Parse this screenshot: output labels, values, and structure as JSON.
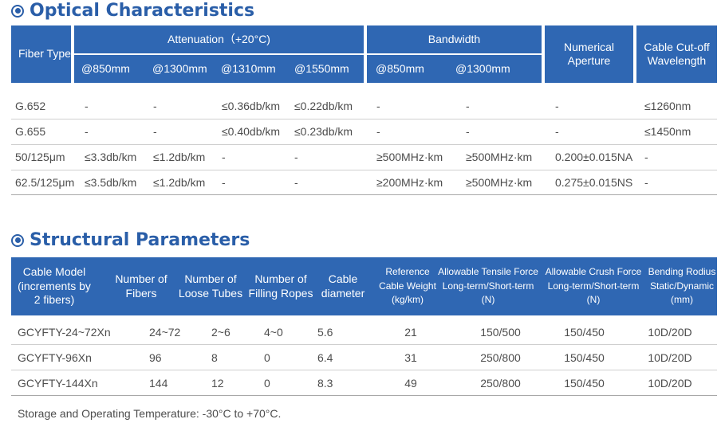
{
  "optical": {
    "title": "Optical Characteristics",
    "headers": {
      "fiber_type": "Fiber Type",
      "attenuation": "Attenuation（+20°C)",
      "bandwidth": "Bandwidth",
      "numerical_aperture": "Numerical Aperture",
      "cutoff": "Cable Cut-off Wavelength",
      "att_sub": [
        "@850mm",
        "@1300mm",
        "@1310mm",
        "@1550mm"
      ],
      "bw_sub": [
        "@850mm",
        "@1300mm"
      ]
    },
    "rows": [
      [
        "G.652",
        "-",
        "-",
        "≤0.36db/km",
        "≤0.22db/km",
        "-",
        "-",
        "-",
        "≤1260nm"
      ],
      [
        "G.655",
        "-",
        "-",
        "≤0.40db/km",
        "≤0.23db/km",
        "-",
        "-",
        "-",
        "≤1450nm"
      ],
      [
        "50/125μm",
        "≤3.3db/km",
        "≤1.2db/km",
        "-",
        "-",
        "≥500MHz·km",
        "≥500MHz·km",
        "0.200±0.015NA",
        "-"
      ],
      [
        "62.5/125μm",
        "≤3.5db/km",
        "≤1.2db/km",
        "-",
        "-",
        "≥200MHz·km",
        "≥500MHz·km",
        "0.275±0.015NS",
        "-"
      ]
    ]
  },
  "structural": {
    "title": "Structural Parameters",
    "headers": {
      "model": [
        "Cable Model",
        "(increments by",
        "2 fibers)"
      ],
      "fibers": [
        "Number of",
        "Fibers"
      ],
      "tubes": [
        "Number of",
        "Loose Tubes"
      ],
      "ropes": [
        "Number of",
        "Filling Ropes"
      ],
      "diameter": [
        "Cable",
        "diameter"
      ],
      "weight": [
        "Reference",
        "Cable Weight",
        "(kg/km)"
      ],
      "tensile": [
        "Allowable Tensile Force",
        "Long-term/Short-term",
        "(N)"
      ],
      "crush": [
        "Allowable Crush Force",
        "Long-term/Short-term",
        "(N)"
      ],
      "bending": [
        "Bending Rodius",
        "Static/Dynamic",
        "(mm)"
      ]
    },
    "rows": [
      [
        "GCYFTY-24~72Xn",
        "24~72",
        "2~6",
        "4~0",
        "5.6",
        "21",
        "150/500",
        "150/450",
        "10D/20D"
      ],
      [
        "GCYFTY-96Xn",
        "96",
        "8",
        "0",
        "6.4",
        "31",
        "250/800",
        "150/450",
        "10D/20D"
      ],
      [
        "GCYFTY-144Xn",
        "144",
        "12",
        "0",
        "8.3",
        "49",
        "250/800",
        "150/450",
        "10D/20D"
      ]
    ]
  },
  "footnote": "Storage and Operating Temperature: -30°C to +70°C."
}
